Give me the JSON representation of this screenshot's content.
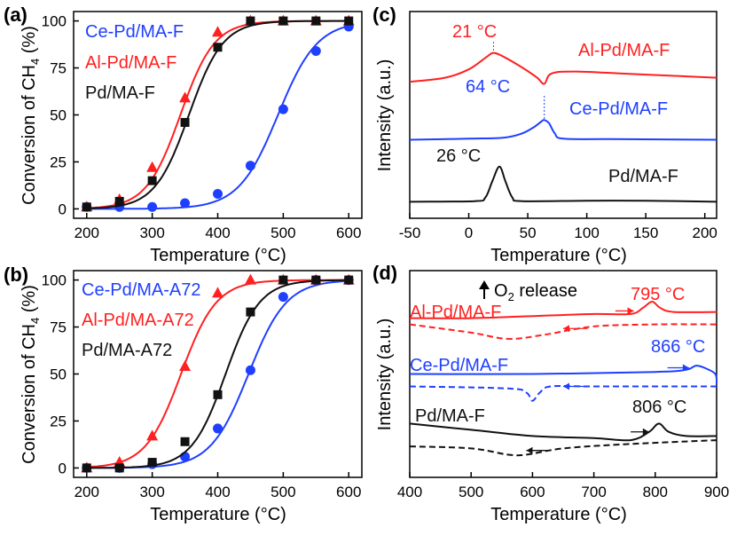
{
  "chart_data": [
    {
      "panel": "(a)",
      "type": "line",
      "xlabel": "Temperature (°C)",
      "ylabel": "Conversion of CH4 (%)",
      "xlim": [
        180,
        620
      ],
      "ylim": [
        -5,
        105
      ],
      "xticks": [
        200,
        300,
        400,
        500,
        600
      ],
      "yticks": [
        0,
        25,
        50,
        75,
        100
      ],
      "series": [
        {
          "name": "Ce-Pd/MA-F",
          "color": "#1f3fff",
          "marker": "circle",
          "x": [
            200,
            250,
            300,
            350,
            400,
            450,
            500,
            550,
            600
          ],
          "y": [
            1,
            1,
            1,
            3,
            8,
            23,
            53,
            84,
            97
          ],
          "fit_T50": 492,
          "fit_w": 30
        },
        {
          "name": "Al-Pd/MA-F",
          "color": "#ff2020",
          "marker": "triangle",
          "x": [
            200,
            250,
            300,
            350,
            400,
            450,
            500,
            550,
            600
          ],
          "y": [
            1,
            5,
            22,
            59,
            94,
            100,
            100,
            100,
            100
          ],
          "fit_T50": 343,
          "fit_w": 26
        },
        {
          "name": "Pd/MA-F",
          "color": "#111111",
          "marker": "square",
          "x": [
            200,
            250,
            300,
            350,
            400,
            450,
            500,
            550,
            600
          ],
          "y": [
            1,
            4,
            15,
            46,
            86,
            100,
            100,
            100,
            100
          ],
          "fit_T50": 356,
          "fit_w": 26
        }
      ]
    },
    {
      "panel": "(b)",
      "type": "line",
      "xlabel": "Temperature (°C)",
      "ylabel": "Conversion of CH4 (%)",
      "xlim": [
        180,
        620
      ],
      "ylim": [
        -5,
        105
      ],
      "xticks": [
        200,
        300,
        400,
        500,
        600
      ],
      "yticks": [
        0,
        25,
        50,
        75,
        100
      ],
      "series": [
        {
          "name": "Ce-Pd/MA-A72",
          "color": "#1f3fff",
          "marker": "circle",
          "x": [
            200,
            250,
            300,
            350,
            400,
            450,
            500,
            550,
            600
          ],
          "y": [
            0,
            0,
            2,
            6,
            21,
            52,
            91,
            100,
            100
          ],
          "fit_T50": 447,
          "fit_w": 29
        },
        {
          "name": "Al-Pd/MA-A72",
          "color": "#ff2020",
          "marker": "triangle",
          "x": [
            200,
            250,
            300,
            350,
            400,
            450,
            500,
            550,
            600
          ],
          "y": [
            0,
            3,
            17,
            54,
            93,
            100,
            100,
            100,
            100
          ],
          "fit_T50": 344,
          "fit_w": 27
        },
        {
          "name": "Pd/MA-A72",
          "color": "#111111",
          "marker": "square",
          "x": [
            200,
            250,
            300,
            350,
            400,
            450,
            500,
            550,
            600
          ],
          "y": [
            0,
            0,
            3,
            14,
            39,
            83,
            100,
            100,
            100
          ],
          "fit_T50": 412,
          "fit_w": 26
        }
      ]
    },
    {
      "panel": "(c)",
      "type": "line",
      "xlabel": "Temperature (°C)",
      "ylabel": "Intensity (a.u.)",
      "xlim": [
        -50,
        210
      ],
      "ylim": [
        0,
        100
      ],
      "xticks": [
        -50,
        0,
        50,
        100,
        150,
        200
      ],
      "series": [
        {
          "name": "Al-Pd/MA-F",
          "color": "#ff2020",
          "offset": 66,
          "points": [
            [
              -50,
              0
            ],
            [
              -20,
              2
            ],
            [
              0,
              6
            ],
            [
              15,
              12
            ],
            [
              21,
              14
            ],
            [
              30,
              12
            ],
            [
              45,
              7
            ],
            [
              58,
              2
            ],
            [
              64,
              -1
            ],
            [
              70,
              4
            ],
            [
              90,
              5
            ],
            [
              130,
              4
            ],
            [
              170,
              3
            ],
            [
              210,
              2
            ]
          ]
        },
        {
          "name": "Ce-Pd/MA-F",
          "color": "#1f3fff",
          "offset": 38,
          "points": [
            [
              -50,
              0
            ],
            [
              0,
              0.5
            ],
            [
              30,
              1
            ],
            [
              45,
              3
            ],
            [
              55,
              6
            ],
            [
              62,
              9
            ],
            [
              64,
              9.5
            ],
            [
              68,
              8
            ],
            [
              73,
              3
            ],
            [
              80,
              0.5
            ],
            [
              120,
              0.3
            ],
            [
              210,
              0
            ]
          ]
        },
        {
          "name": "Pd/MA-F",
          "color": "#111111",
          "offset": 8,
          "points": [
            [
              -50,
              0
            ],
            [
              5,
              0.3
            ],
            [
              14,
              2
            ],
            [
              20,
              10
            ],
            [
              26,
              17
            ],
            [
              31,
              10
            ],
            [
              37,
              2
            ],
            [
              45,
              0.3
            ],
            [
              100,
              0.5
            ],
            [
              150,
              0.5
            ],
            [
              210,
              0
            ]
          ]
        }
      ],
      "annotations": [
        "21 °C",
        "64 °C",
        "26 °C"
      ]
    },
    {
      "panel": "(d)",
      "type": "line",
      "xlabel": "Temperature (°C)",
      "ylabel": "Intensity (a.u.)",
      "xlim": [
        400,
        900
      ],
      "ylim": [
        0,
        100
      ],
      "xticks": [
        400,
        500,
        600,
        700,
        800,
        900
      ],
      "series": [
        {
          "name": "Al-Pd/MA-F",
          "color": "#ff2020",
          "offset": 77,
          "solid": [
            [
              400,
              0
            ],
            [
              500,
              0
            ],
            [
              600,
              1
            ],
            [
              700,
              2
            ],
            [
              760,
              2
            ],
            [
              780,
              5
            ],
            [
              795,
              8
            ],
            [
              808,
              5
            ],
            [
              830,
              3
            ],
            [
              900,
              3
            ]
          ],
          "dashed": [
            [
              400,
              -3
            ],
            [
              500,
              -7
            ],
            [
              560,
              -10
            ],
            [
              620,
              -8
            ],
            [
              700,
              -4
            ],
            [
              800,
              -3
            ],
            [
              900,
              -3
            ]
          ]
        },
        {
          "name": "Ce-Pd/MA-F",
          "color": "#1f3fff",
          "offset": 50,
          "solid": [
            [
              400,
              0
            ],
            [
              600,
              0
            ],
            [
              800,
              1
            ],
            [
              850,
              2
            ],
            [
              866,
              4
            ],
            [
              880,
              3
            ],
            [
              898,
              0
            ],
            [
              900,
              -5
            ]
          ],
          "dashed": [
            [
              400,
              -6
            ],
            [
              560,
              -7
            ],
            [
              590,
              -9
            ],
            [
              600,
              -13
            ],
            [
              612,
              -9
            ],
            [
              630,
              -6
            ],
            [
              700,
              -6
            ],
            [
              900,
              -6
            ]
          ]
        },
        {
          "name": "Pd/MA-F",
          "color": "#111111",
          "offset": 20,
          "solid": [
            [
              400,
              6
            ],
            [
              500,
              3
            ],
            [
              600,
              0
            ],
            [
              700,
              -1
            ],
            [
              760,
              -2
            ],
            [
              790,
              2
            ],
            [
              806,
              6
            ],
            [
              822,
              2
            ],
            [
              850,
              0
            ],
            [
              900,
              0
            ]
          ],
          "dashed": [
            [
              400,
              -5
            ],
            [
              500,
              -6
            ],
            [
              560,
              -9
            ],
            [
              590,
              -9
            ],
            [
              650,
              -6
            ],
            [
              750,
              -4
            ],
            [
              900,
              -2
            ]
          ]
        }
      ],
      "annotations": [
        "O2 release",
        "795 °C",
        "866 °C",
        "806 °C"
      ]
    }
  ],
  "labels": {
    "a": {
      "panel": "(a)",
      "legend": [
        "Ce-Pd/MA-F",
        "Al-Pd/MA-F",
        "Pd/MA-F"
      ],
      "xlabel": "Temperature (°C)",
      "ylabel_pre": "Conversion of CH",
      "ylabel_sub": "4",
      "ylabel_post": " (%)"
    },
    "b": {
      "panel": "(b)",
      "legend": [
        "Ce-Pd/MA-A72",
        "Al-Pd/MA-A72",
        "Pd/MA-A72"
      ],
      "xlabel": "Temperature (°C)",
      "ylabel_pre": "Conversion of CH",
      "ylabel_sub": "4",
      "ylabel_post": " (%)"
    },
    "c": {
      "panel": "(c)",
      "series_labels": [
        "Al-Pd/MA-F",
        "Ce-Pd/MA-F",
        "Pd/MA-F"
      ],
      "peaks": [
        "21 °C",
        "64 °C",
        "26 °C"
      ],
      "xlabel": "Temperature (°C)",
      "ylabel": "Intensity (a.u.)"
    },
    "d": {
      "panel": "(d)",
      "series_labels": [
        "Al-Pd/MA-F",
        "Ce-Pd/MA-F",
        "Pd/MA-F"
      ],
      "peaks": [
        "795 °C",
        "866 °C",
        "806 °C"
      ],
      "o2_pre": "O",
      "o2_sub": "2",
      "o2_post": " release",
      "xlabel": "Temperature (°C)",
      "ylabel": "Intensity (a.u.)"
    }
  }
}
